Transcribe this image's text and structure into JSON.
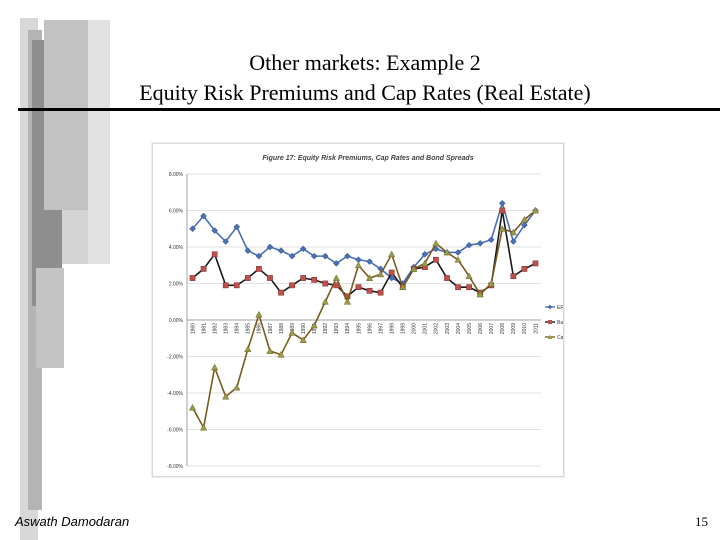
{
  "slide": {
    "title_line1": "Other markets: Example 2",
    "title_line2": "Equity Risk Premiums and Cap Rates (Real Estate)",
    "author": "Aswath Damodaran",
    "page_number": "15"
  },
  "colors": {
    "erp": "#4a6fb5",
    "baa": "#c0504d",
    "cap": "#9b9b4a",
    "baa_line": "#1a1a1a",
    "cap_line": "#7a5a1e",
    "deco_dark": "#9a9a9a",
    "deco_light": "#c8c8c8"
  },
  "chart_data": {
    "type": "line",
    "title": "Figure 17: Equity Risk Premiums, Cap Rates and Bond Spreads",
    "x": [
      "1980",
      "1981",
      "1982",
      "1983",
      "1984",
      "1985",
      "1986",
      "1987",
      "1988",
      "1989",
      "1990",
      "1991",
      "1992",
      "1993",
      "1994",
      "1995",
      "1996",
      "1997",
      "1998",
      "1999",
      "2000",
      "2001",
      "2002",
      "2003",
      "2004",
      "2005",
      "2006",
      "2007",
      "2008",
      "2009",
      "2010",
      "2011"
    ],
    "ylim": [
      -8,
      8
    ],
    "yticks": [
      "8.00%",
      "6.00%",
      "4.00%",
      "2.00%",
      "0.00%",
      "-2.00%",
      "-4.00%",
      "-6.00%",
      "-8.00%"
    ],
    "ytick_values": [
      8,
      6,
      4,
      2,
      0,
      -2,
      -4,
      -6,
      -8
    ],
    "grid": true,
    "legend_position": "right",
    "series": [
      {
        "name": "ERP",
        "marker": "diamond",
        "values": [
          5.0,
          5.7,
          4.9,
          4.3,
          5.1,
          3.8,
          3.5,
          4.0,
          3.8,
          3.5,
          3.9,
          3.5,
          3.5,
          3.1,
          3.5,
          3.3,
          3.2,
          2.8,
          2.3,
          2.0,
          2.9,
          3.6,
          3.9,
          3.7,
          3.7,
          4.1,
          4.2,
          4.4,
          6.4,
          4.3,
          5.2,
          6.0
        ]
      },
      {
        "name": "Baa Spread",
        "marker": "square",
        "values": [
          2.3,
          2.8,
          3.6,
          1.9,
          1.9,
          2.3,
          2.8,
          2.3,
          1.5,
          1.9,
          2.3,
          2.2,
          2.0,
          1.9,
          1.3,
          1.8,
          1.6,
          1.5,
          2.6,
          1.8,
          2.8,
          2.9,
          3.3,
          2.3,
          1.8,
          1.8,
          1.5,
          1.9,
          6.0,
          2.4,
          2.8,
          3.1
        ]
      },
      {
        "name": "Cap Rate premium",
        "marker": "triangle",
        "values": [
          -4.8,
          -5.9,
          -2.6,
          -4.2,
          -3.7,
          -1.6,
          0.3,
          -1.7,
          -1.9,
          -0.7,
          -1.1,
          -0.3,
          1.0,
          2.3,
          1.0,
          3.0,
          2.3,
          2.5,
          3.6,
          1.8,
          2.8,
          3.1,
          4.2,
          3.7,
          3.3,
          2.4,
          1.4,
          2.0,
          5.0,
          4.8,
          5.5,
          6.0
        ]
      }
    ]
  }
}
